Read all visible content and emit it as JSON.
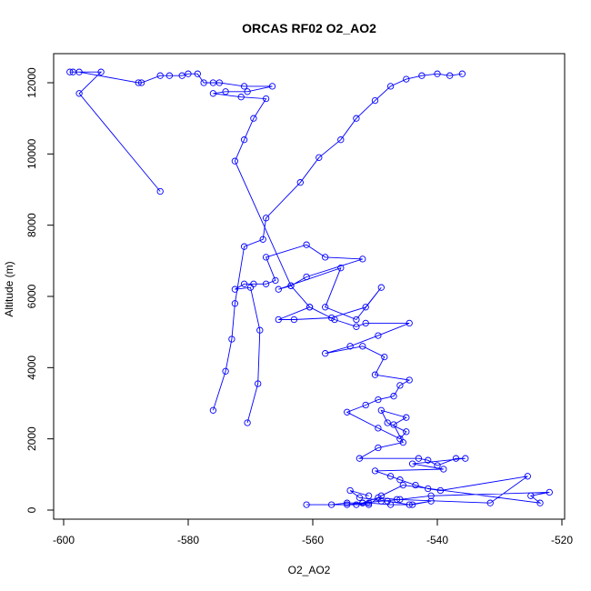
{
  "chart_data": {
    "type": "line",
    "title": "ORCAS RF02 O2_AO2",
    "xlabel": "O2_AO2",
    "ylabel": "Altitude (m)",
    "xlim": [
      -600,
      -520
    ],
    "ylim": [
      0,
      12500
    ],
    "x_ticks": [
      -600,
      -580,
      -560,
      -540,
      -520
    ],
    "y_ticks": [
      0,
      2000,
      4000,
      6000,
      8000,
      10000,
      12000
    ],
    "x_tick_labels": [
      "-600",
      "-580",
      "-560",
      "-540",
      "-520"
    ],
    "y_tick_labels": [
      "0",
      "2000",
      "4000",
      "6000",
      "8000",
      "10000",
      "12000"
    ],
    "grid": false,
    "legend": "none",
    "line_color": "#0000ff",
    "marker": "open-circle",
    "series": [
      {
        "x": [
          -570.5,
          -568.8,
          -568.5,
          -570.0,
          -572.5,
          -571.0,
          -569.5,
          -567.5,
          -566.0,
          -567.5,
          -561.0,
          -558.0,
          -552.0,
          -561.0,
          -563.5,
          -565.5,
          -555.5,
          -558.0,
          -553.0,
          -549.0,
          -551.5,
          -557.0,
          -563.0,
          -565.5,
          -560.5,
          -556.5,
          -553.0,
          -551.5,
          -544.5,
          -549.5,
          -554.0,
          -558.0,
          -552.0,
          -548.5,
          -550.0,
          -544.5,
          -546.0,
          -547.0,
          -549.5,
          -551.5,
          -554.5,
          -549.5,
          -546.0,
          -545.0,
          -548.0,
          -549.0,
          -545.0,
          -547.0,
          -545.5,
          -549.5,
          -552.5,
          -543.0,
          -541.5,
          -540.0,
          -537.0,
          -535.5,
          -544.0,
          -539.0,
          -550.0,
          -547.5,
          -546.0,
          -543.5,
          -541.5,
          -539.5,
          -525.5,
          -531.5,
          -546.5,
          -549.5,
          -552.0,
          -554.5,
          -551.0,
          -549.0,
          -545.5,
          -523.5,
          -525.0,
          -522.0,
          -541.0,
          -546.0,
          -549.0,
          -552.0,
          -554.5,
          -557.0,
          -561.0,
          -553.0,
          -551.0,
          -547.5,
          -544.0,
          -541.0,
          -544.5,
          -548.0,
          -552.5,
          -554.0,
          -551.0
        ],
        "y": [
          2450,
          3550,
          5050,
          6250,
          6200,
          6350,
          6350,
          6350,
          6450,
          7100,
          7450,
          7100,
          7050,
          6550,
          6300,
          6200,
          6800,
          5700,
          5350,
          6250,
          5700,
          5400,
          5350,
          5350,
          5700,
          5350,
          5150,
          5250,
          5250,
          4900,
          4600,
          4400,
          4600,
          4300,
          3800,
          3650,
          3500,
          3200,
          3100,
          2950,
          2750,
          2300,
          2000,
          2200,
          2450,
          2800,
          2600,
          2400,
          1900,
          1750,
          1450,
          1450,
          1400,
          1250,
          1450,
          1450,
          1300,
          1150,
          1100,
          950,
          850,
          700,
          600,
          550,
          950,
          200,
          300,
          350,
          200,
          150,
          150,
          400,
          700,
          200,
          400,
          500,
          400,
          300,
          250,
          200,
          200,
          150,
          150,
          150,
          200,
          150,
          150,
          250,
          150,
          250,
          350,
          550,
          400
        ]
      },
      {
        "x": [
          -576.0,
          -574.0,
          -573.0,
          -572.5,
          -571.0,
          -568.0,
          -567.5,
          -562.0,
          -559.0,
          -555.5,
          -553.0,
          -550.0,
          -547.5,
          -545.0,
          -542.5,
          -540.0,
          -538.0,
          -536.0
        ],
        "y": [
          2800,
          3900,
          4800,
          5800,
          7400,
          7600,
          8200,
          9200,
          9900,
          10400,
          11000,
          11500,
          11900,
          12100,
          12200,
          12250,
          12200,
          12250
        ]
      },
      {
        "x": [
          -584.5,
          -597.5,
          -594.0,
          -599.0,
          -598.5,
          -597.5,
          -588.0,
          -587.5,
          -584.5,
          -583.0,
          -581.0,
          -580.0,
          -578.5,
          -577.5,
          -576.0,
          -575.0,
          -571.0,
          -566.5,
          -570.5,
          -574.0,
          -576.0,
          -571.5,
          -567.5,
          -569.5,
          -571.0,
          -572.5,
          -563.5,
          -560.5
        ],
        "y": [
          8950,
          11700,
          12300,
          12300,
          12300,
          12300,
          12000,
          12000,
          12200,
          12200,
          12200,
          12250,
          12250,
          12000,
          12000,
          12000,
          11900,
          11900,
          11750,
          11750,
          11700,
          11600,
          11550,
          11000,
          10400,
          9800,
          6300,
          5700
        ]
      }
    ]
  }
}
